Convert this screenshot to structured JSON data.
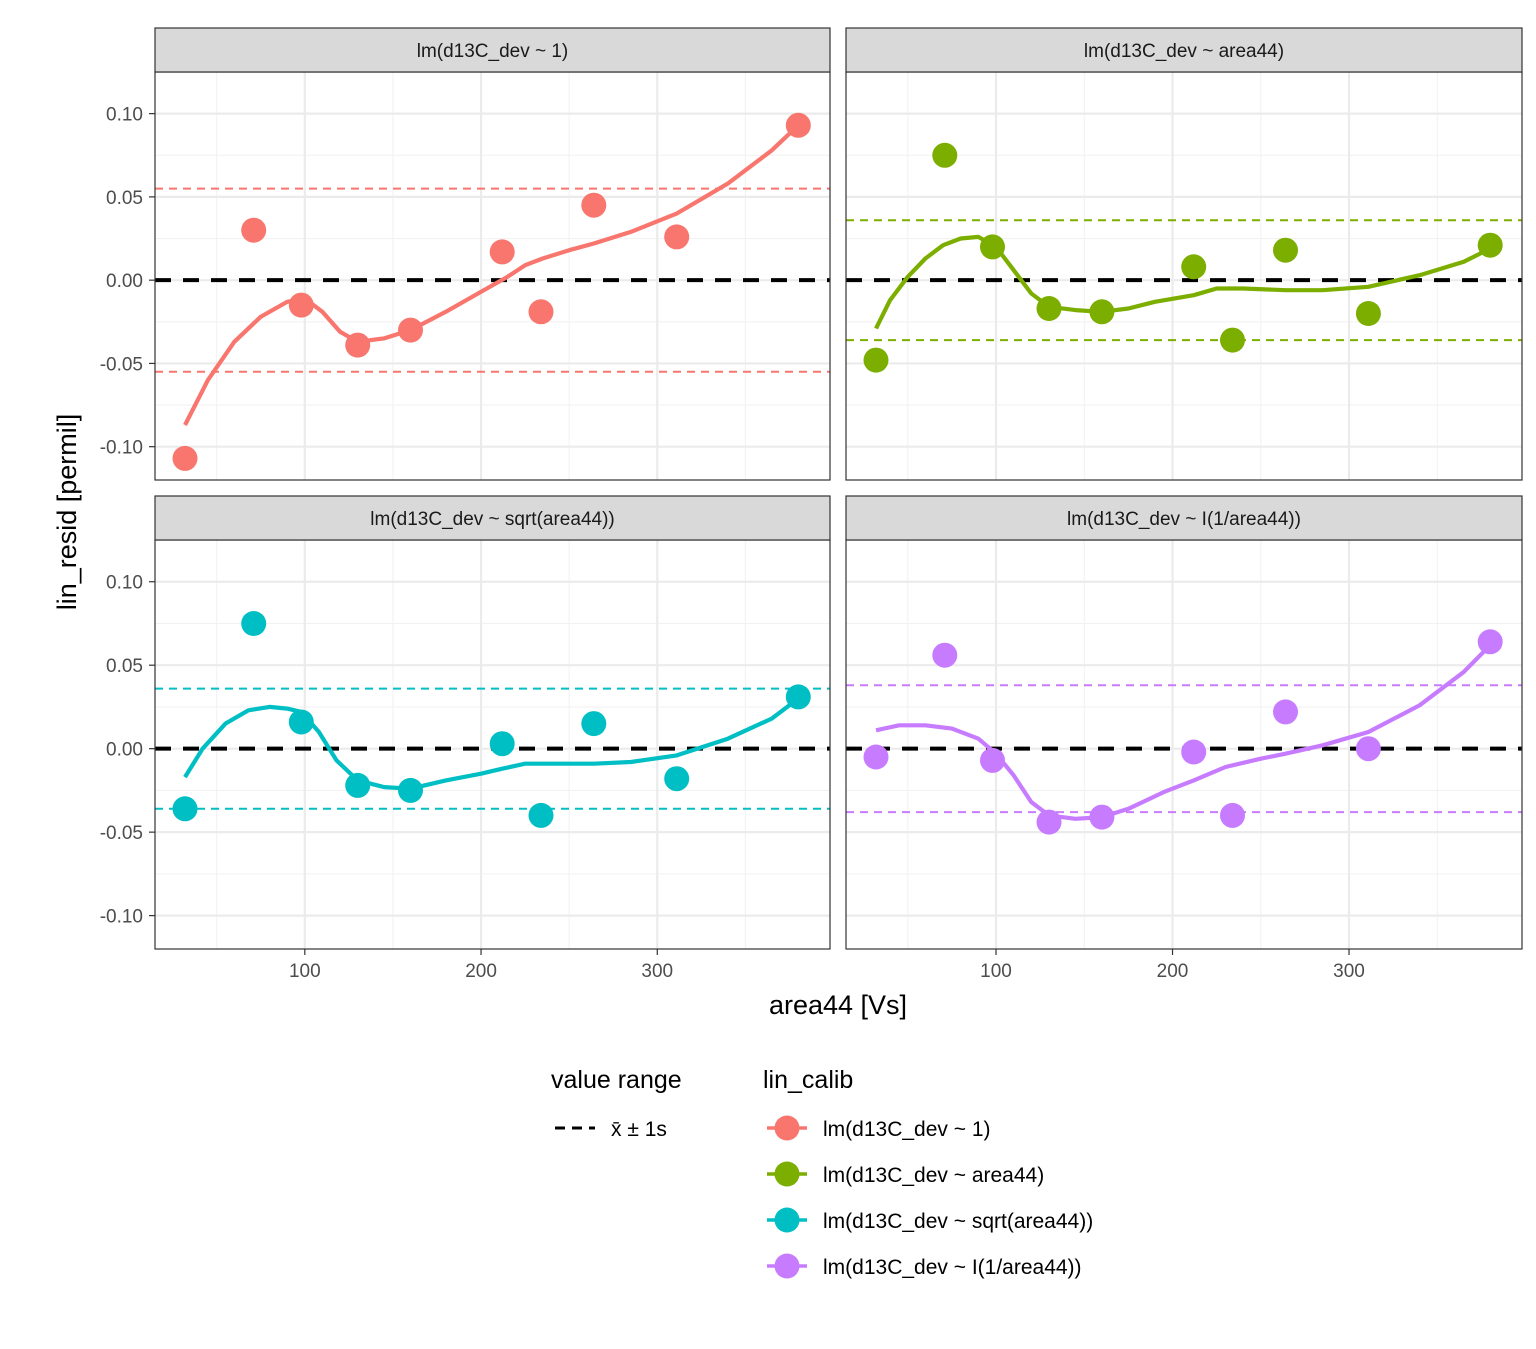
{
  "chart_data": {
    "type": "scatter",
    "xlabel": "area44 [Vs]",
    "ylabel": "lin_resid [permil]",
    "xlim": [
      15,
      398
    ],
    "ylim": [
      -0.12,
      0.125
    ],
    "x_ticks": [
      100,
      200,
      300
    ],
    "y_ticks": [
      -0.1,
      -0.05,
      0,
      0.05,
      0.1
    ],
    "y_tick_labels": [
      "-0.10",
      "-0.05",
      "0.00",
      "0.05",
      "0.10"
    ],
    "x_tick_labels": [
      "100",
      "200",
      "300"
    ],
    "grid": true,
    "legend_position": "bottom",
    "legend": {
      "linetype_title": "value range",
      "linetype_label": "x̄ ± 1s",
      "color_title": "lin_calib"
    },
    "x": [
      32,
      71,
      98,
      130,
      160,
      212,
      234,
      264,
      311,
      380
    ],
    "panels": [
      {
        "name": "lm(d13C_dev ~ 1)",
        "color": "#F8766D",
        "y": [
          -0.107,
          0.03,
          -0.015,
          -0.039,
          -0.03,
          0.017,
          -0.019,
          0.045,
          0.026,
          0.093
        ],
        "sd": 0.055,
        "smooth": [
          [
            32,
            -0.087
          ],
          [
            45,
            -0.06
          ],
          [
            60,
            -0.037
          ],
          [
            75,
            -0.022
          ],
          [
            90,
            -0.013
          ],
          [
            100,
            -0.011
          ],
          [
            110,
            -0.019
          ],
          [
            120,
            -0.031
          ],
          [
            130,
            -0.037
          ],
          [
            145,
            -0.035
          ],
          [
            160,
            -0.03
          ],
          [
            180,
            -0.019
          ],
          [
            200,
            -0.007
          ],
          [
            215,
            0.002
          ],
          [
            225,
            0.009
          ],
          [
            235,
            0.013
          ],
          [
            250,
            0.018
          ],
          [
            264,
            0.022
          ],
          [
            285,
            0.029
          ],
          [
            311,
            0.04
          ],
          [
            340,
            0.058
          ],
          [
            365,
            0.078
          ],
          [
            380,
            0.093
          ]
        ]
      },
      {
        "name": "lm(d13C_dev ~ area44)",
        "color": "#7CAE00",
        "y": [
          -0.048,
          0.075,
          0.02,
          -0.017,
          -0.019,
          0.008,
          -0.036,
          0.018,
          -0.02,
          0.021
        ],
        "sd": 0.036,
        "smooth": [
          [
            32,
            -0.029
          ],
          [
            40,
            -0.012
          ],
          [
            50,
            0.002
          ],
          [
            60,
            0.013
          ],
          [
            70,
            0.021
          ],
          [
            80,
            0.025
          ],
          [
            90,
            0.026
          ],
          [
            100,
            0.02
          ],
          [
            110,
            0.006
          ],
          [
            120,
            -0.008
          ],
          [
            130,
            -0.016
          ],
          [
            145,
            -0.018
          ],
          [
            160,
            -0.019
          ],
          [
            175,
            -0.017
          ],
          [
            190,
            -0.013
          ],
          [
            212,
            -0.009
          ],
          [
            225,
            -0.005
          ],
          [
            240,
            -0.005
          ],
          [
            264,
            -0.006
          ],
          [
            285,
            -0.006
          ],
          [
            311,
            -0.004
          ],
          [
            340,
            0.003
          ],
          [
            365,
            0.011
          ],
          [
            380,
            0.019
          ]
        ]
      },
      {
        "name": "lm(d13C_dev ~ sqrt(area44))",
        "color": "#00BFC4",
        "y": [
          -0.036,
          0.075,
          0.016,
          -0.022,
          -0.025,
          0.003,
          -0.04,
          0.015,
          -0.018,
          0.031
        ],
        "sd": 0.036,
        "smooth": [
          [
            32,
            -0.017
          ],
          [
            42,
            0.0
          ],
          [
            55,
            0.015
          ],
          [
            68,
            0.023
          ],
          [
            80,
            0.025
          ],
          [
            90,
            0.024
          ],
          [
            98,
            0.022
          ],
          [
            108,
            0.01
          ],
          [
            118,
            -0.007
          ],
          [
            130,
            -0.019
          ],
          [
            145,
            -0.023
          ],
          [
            160,
            -0.024
          ],
          [
            180,
            -0.019
          ],
          [
            200,
            -0.015
          ],
          [
            212,
            -0.012
          ],
          [
            225,
            -0.009
          ],
          [
            245,
            -0.009
          ],
          [
            264,
            -0.009
          ],
          [
            285,
            -0.008
          ],
          [
            311,
            -0.004
          ],
          [
            340,
            0.006
          ],
          [
            365,
            0.018
          ],
          [
            380,
            0.03
          ]
        ]
      },
      {
        "name": "lm(d13C_dev ~ I(1/area44))",
        "color": "#C77CFF",
        "y": [
          -0.005,
          0.056,
          -0.007,
          -0.044,
          -0.041,
          -0.002,
          -0.04,
          0.022,
          0.0,
          0.064
        ],
        "sd": 0.038,
        "smooth": [
          [
            32,
            0.011
          ],
          [
            45,
            0.014
          ],
          [
            60,
            0.014
          ],
          [
            75,
            0.012
          ],
          [
            90,
            0.006
          ],
          [
            100,
            -0.003
          ],
          [
            110,
            -0.016
          ],
          [
            120,
            -0.032
          ],
          [
            130,
            -0.04
          ],
          [
            145,
            -0.042
          ],
          [
            160,
            -0.041
          ],
          [
            175,
            -0.036
          ],
          [
            195,
            -0.026
          ],
          [
            212,
            -0.019
          ],
          [
            230,
            -0.011
          ],
          [
            250,
            -0.006
          ],
          [
            264,
            -0.003
          ],
          [
            285,
            0.002
          ],
          [
            311,
            0.01
          ],
          [
            340,
            0.026
          ],
          [
            365,
            0.046
          ],
          [
            380,
            0.062
          ]
        ]
      }
    ]
  }
}
